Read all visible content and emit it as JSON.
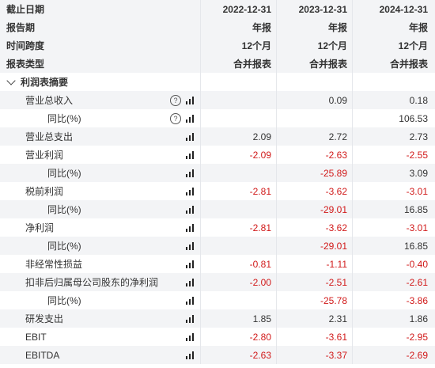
{
  "headers": {
    "label_date": "截止日期",
    "label_report": "报告期",
    "label_span": "时间跨度",
    "label_type": "报表类型",
    "cols": [
      {
        "date": "2022-12-31",
        "report": "年报",
        "span": "12个月",
        "type": "合并报表"
      },
      {
        "date": "2023-12-31",
        "report": "年报",
        "span": "12个月",
        "type": "合并报表"
      },
      {
        "date": "2024-12-31",
        "report": "年报",
        "span": "12个月",
        "type": "合并报表"
      }
    ]
  },
  "section": "利润表摘要",
  "rows": [
    {
      "label": "营业总收入",
      "v": [
        "",
        "0.09",
        "0.18"
      ],
      "help": true
    },
    {
      "label": "同比(%)",
      "v": [
        "",
        "",
        "106.53"
      ],
      "help": true
    },
    {
      "label": "营业总支出",
      "v": [
        "2.09",
        "2.72",
        "2.73"
      ]
    },
    {
      "label": "营业利润",
      "v": [
        "-2.09",
        "-2.63",
        "-2.55"
      ]
    },
    {
      "label": "同比(%)",
      "v": [
        "",
        "-25.89",
        "3.09"
      ]
    },
    {
      "label": "税前利润",
      "v": [
        "-2.81",
        "-3.62",
        "-3.01"
      ]
    },
    {
      "label": "同比(%)",
      "v": [
        "",
        "-29.01",
        "16.85"
      ]
    },
    {
      "label": "净利润",
      "v": [
        "-2.81",
        "-3.62",
        "-3.01"
      ]
    },
    {
      "label": "同比(%)",
      "v": [
        "",
        "-29.01",
        "16.85"
      ]
    },
    {
      "label": "非经常性损益",
      "v": [
        "-0.81",
        "-1.11",
        "-0.40"
      ]
    },
    {
      "label": "扣非后归属母公司股东的净利润",
      "v": [
        "-2.00",
        "-2.51",
        "-2.61"
      ]
    },
    {
      "label": "同比(%)",
      "v": [
        "",
        "-25.78",
        "-3.86"
      ]
    },
    {
      "label": "研发支出",
      "v": [
        "1.85",
        "2.31",
        "1.86"
      ]
    },
    {
      "label": "EBIT",
      "v": [
        "-2.80",
        "-3.61",
        "-2.95"
      ]
    },
    {
      "label": "EBITDA",
      "v": [
        "-2.63",
        "-3.37",
        "-2.69"
      ]
    }
  ]
}
